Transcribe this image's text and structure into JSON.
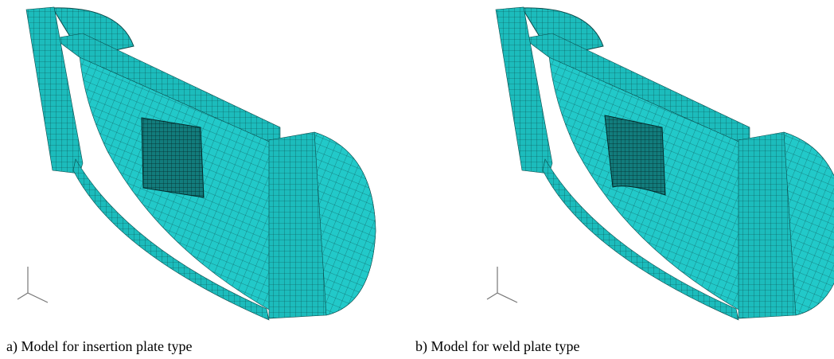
{
  "panels": [
    {
      "caption": "a) Model for insertion plate type"
    },
    {
      "caption": "b) Model for weld plate type"
    }
  ]
}
